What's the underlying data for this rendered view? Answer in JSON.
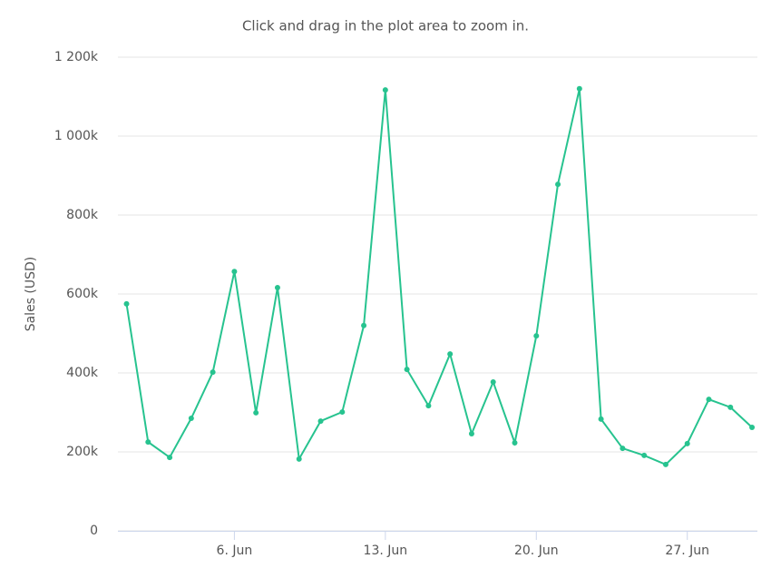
{
  "chart_data": {
    "type": "line",
    "subtitle": "Click and drag in the plot area to zoom in.",
    "y_label": "Sales (USD)",
    "x": [
      1,
      2,
      3,
      4,
      5,
      6,
      7,
      8,
      9,
      10,
      11,
      12,
      13,
      14,
      15,
      16,
      17,
      18,
      19,
      20,
      21,
      22,
      23,
      24,
      25,
      26,
      27,
      28,
      29,
      30
    ],
    "series": [
      {
        "name": "Sales",
        "color": "#27c38f",
        "values": [
          575000,
          225000,
          186000,
          285000,
          402000,
          657000,
          299000,
          616000,
          182000,
          278000,
          301000,
          520000,
          1117000,
          409000,
          317000,
          448000,
          246000,
          377000,
          223000,
          494000,
          878000,
          1120000,
          283000,
          209000,
          191000,
          168000,
          221000,
          333000,
          313000,
          262000
        ]
      }
    ],
    "xlim": [
      0.6,
      30.25
    ],
    "xticks": [
      {
        "value": 6,
        "label": "6. Jun"
      },
      {
        "value": 13,
        "label": "13. Jun"
      },
      {
        "value": 20,
        "label": "20. Jun"
      },
      {
        "value": 27,
        "label": "27. Jun"
      }
    ],
    "ylim": [
      0,
      1200000
    ],
    "yticks": [
      0,
      {
        "value": 200000,
        "label": "200k"
      },
      {
        "value": 400000,
        "label": "400k"
      },
      {
        "value": 600000,
        "label": "600k"
      },
      {
        "value": 800000,
        "label": "800k"
      },
      {
        "value": 1000000,
        "label": "1 000k"
      },
      {
        "value": 1200000,
        "label": "1 200k"
      }
    ],
    "grid": true
  }
}
